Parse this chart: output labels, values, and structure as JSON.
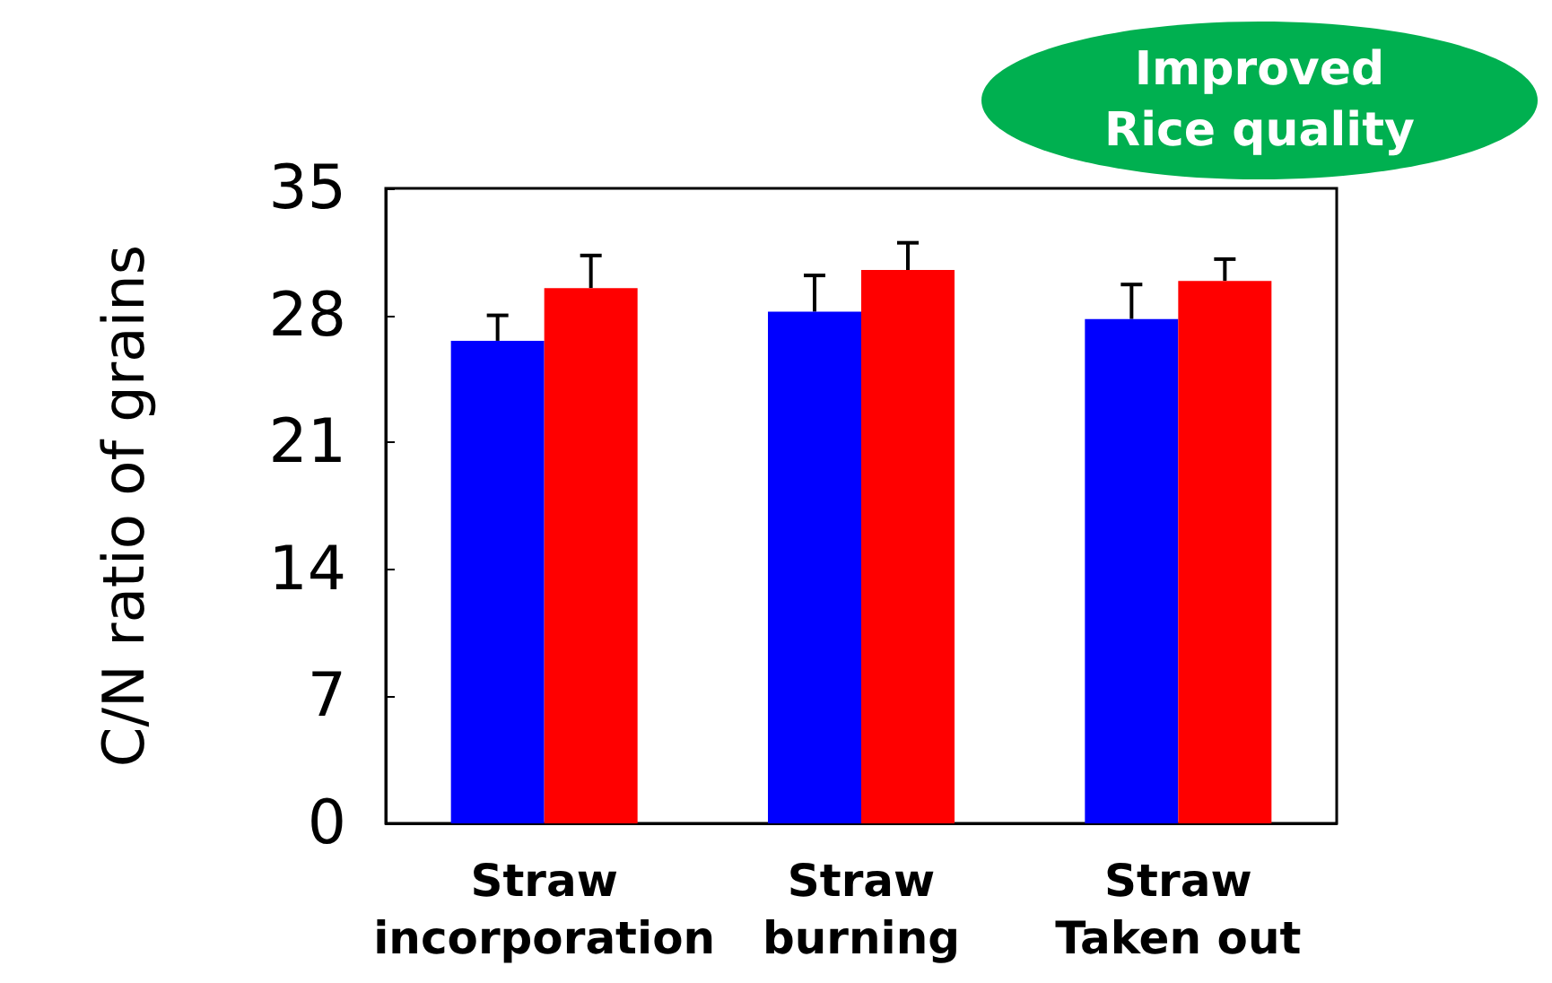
{
  "chart_data": {
    "type": "bar",
    "ylabel": "C/N ratio of grains",
    "categories": [
      "Straw\nincorporation",
      "Straw\nburning",
      "Straw\nTaken out"
    ],
    "series": [
      {
        "color": "#0000ff",
        "values": [
          26.6,
          28.2,
          27.8
        ],
        "errors": [
          [
            26.6,
            28.0
          ],
          [
            28.2,
            30.2
          ],
          [
            27.8,
            29.7
          ]
        ]
      },
      {
        "color": "#ff0000",
        "values": [
          29.5,
          30.5,
          29.9
        ],
        "errors": [
          [
            29.5,
            31.3
          ],
          [
            30.5,
            32.0
          ],
          [
            29.9,
            31.1
          ]
        ]
      }
    ],
    "ylim": [
      0,
      35
    ],
    "yticks": [
      0,
      7,
      14,
      21,
      28,
      35
    ],
    "grid": false,
    "annotations": [
      "Improved\nRice quality"
    ]
  }
}
